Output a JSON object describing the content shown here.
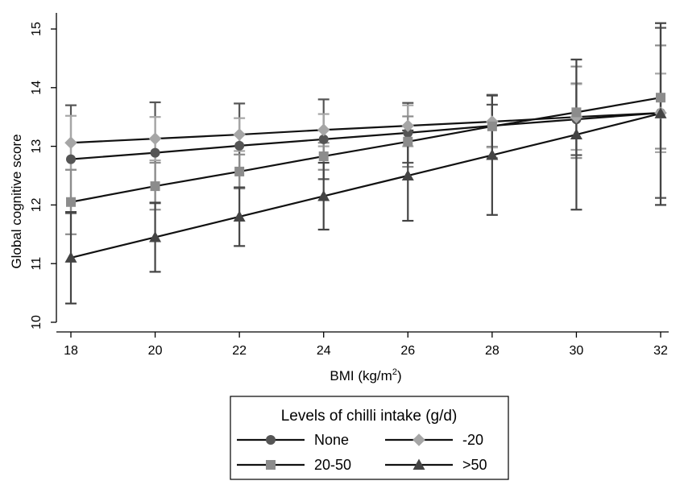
{
  "chart_data": {
    "type": "line",
    "xlabel": "BMI (kg/m",
    "xlabel_sup": "2",
    "xlabel_close": ")",
    "ylabel": "Global cognitive score",
    "x": [
      18,
      20,
      22,
      24,
      26,
      28,
      30,
      32
    ],
    "xlim": [
      18,
      32
    ],
    "ylim": [
      10,
      15
    ],
    "xticks": [
      "18",
      "20",
      "22",
      "24",
      "26",
      "28",
      "30",
      "32"
    ],
    "yticks": [
      "10",
      "11",
      "12",
      "13",
      "14",
      "15"
    ],
    "grid": false,
    "legend": {
      "title": "Levels of chilli intake (g/d)",
      "placement": "bottom"
    },
    "series": [
      {
        "name": "None",
        "marker": "circle",
        "color": "#555555",
        "values": [
          12.78,
          12.89,
          13.01,
          13.12,
          13.23,
          13.35,
          13.46,
          13.57
        ],
        "lower": [
          11.86,
          12.03,
          12.29,
          12.44,
          12.72,
          12.99,
          12.85,
          12.12
        ],
        "upper": [
          13.7,
          13.75,
          13.73,
          13.8,
          13.74,
          13.71,
          14.07,
          15.02
        ]
      },
      {
        "name": "-20",
        "marker": "diamond",
        "color": "#a6a6a6",
        "values": [
          13.06,
          13.13,
          13.2,
          13.28,
          13.35,
          13.42,
          13.5,
          13.57
        ],
        "lower": [
          12.6,
          12.76,
          12.92,
          13.0,
          13.0,
          12.98,
          12.94,
          12.9
        ],
        "upper": [
          13.52,
          13.5,
          13.48,
          13.55,
          13.7,
          13.86,
          14.06,
          14.24
        ]
      },
      {
        "name": "20-50",
        "marker": "square",
        "color": "#8c8c8c",
        "values": [
          12.05,
          12.32,
          12.57,
          12.83,
          13.08,
          13.34,
          13.58,
          13.83
        ],
        "lower": [
          11.5,
          11.92,
          12.28,
          12.6,
          12.65,
          12.8,
          12.8,
          12.96
        ],
        "upper": [
          12.6,
          12.72,
          12.86,
          13.06,
          13.51,
          13.88,
          14.36,
          14.72
        ]
      },
      {
        "name": ">50",
        "marker": "triangle",
        "color": "#444444",
        "values": [
          11.1,
          11.45,
          11.8,
          12.15,
          12.5,
          12.85,
          13.2,
          13.56
        ],
        "lower": [
          10.32,
          10.86,
          11.3,
          11.58,
          11.73,
          11.83,
          11.92,
          12.0
        ],
        "upper": [
          11.88,
          12.04,
          12.3,
          12.72,
          13.27,
          13.87,
          14.48,
          15.1
        ]
      }
    ]
  }
}
